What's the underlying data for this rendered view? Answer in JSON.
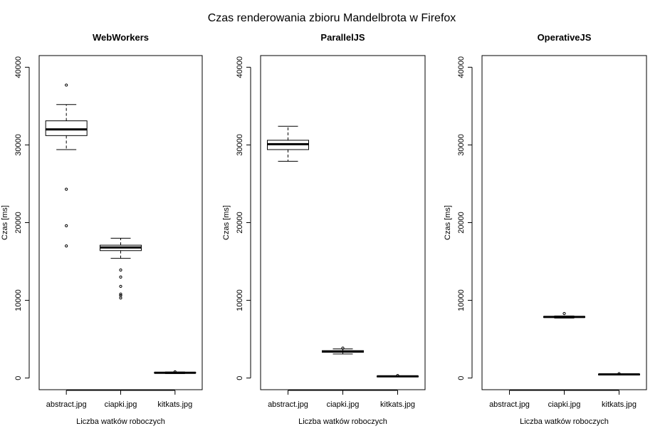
{
  "title": "Czas renderowania zbioru Mandelbrota w Firefox",
  "chart_data": [
    {
      "type": "boxplot",
      "title": "WebWorkers",
      "xlabel": "Liczba watków roboczych",
      "ylabel": "Czas [ms]",
      "ylim": [
        -1500,
        41500
      ],
      "yticks": [
        0,
        10000,
        20000,
        30000,
        40000
      ],
      "categories": [
        "abstract.jpg",
        "ciapki.jpg",
        "kitkats.jpg"
      ],
      "boxes": [
        {
          "category": "abstract.jpg",
          "whisker_low": 29400,
          "q1": 31200,
          "median": 32000,
          "q3": 33100,
          "whisker_high": 35200,
          "outliers": [
            37700,
            24300,
            19600,
            17000
          ]
        },
        {
          "category": "ciapki.jpg",
          "whisker_low": 15400,
          "q1": 16400,
          "median": 16800,
          "q3": 17100,
          "whisker_high": 18000,
          "outliers": [
            13900,
            13000,
            11800,
            10800,
            10600,
            10300
          ]
        },
        {
          "category": "kitkats.jpg",
          "whisker_low": 580,
          "q1": 630,
          "median": 680,
          "q3": 740,
          "whisker_high": 780,
          "outliers": [
            800
          ]
        }
      ]
    },
    {
      "type": "boxplot",
      "title": "ParallelJS",
      "xlabel": "Liczba watków roboczych",
      "ylabel": "Czas [ms]",
      "ylim": [
        -1500,
        41500
      ],
      "yticks": [
        0,
        10000,
        20000,
        30000,
        40000
      ],
      "categories": [
        "abstract.jpg",
        "ciapki.jpg",
        "kitkats.jpg"
      ],
      "boxes": [
        {
          "category": "abstract.jpg",
          "whisker_low": 27900,
          "q1": 29400,
          "median": 30100,
          "q3": 30600,
          "whisker_high": 32400,
          "outliers": []
        },
        {
          "category": "ciapki.jpg",
          "whisker_low": 3100,
          "q1": 3320,
          "median": 3420,
          "q3": 3520,
          "whisker_high": 3750,
          "outliers": [
            3850
          ]
        },
        {
          "category": "kitkats.jpg",
          "whisker_low": 150,
          "q1": 190,
          "median": 220,
          "q3": 250,
          "whisker_high": 290,
          "outliers": [
            320
          ]
        }
      ]
    },
    {
      "type": "boxplot",
      "title": "OperativeJS",
      "xlabel": "Liczba watków roboczych",
      "ylabel": "Czas [ms]",
      "ylim": [
        -1500,
        41500
      ],
      "yticks": [
        0,
        10000,
        20000,
        30000,
        40000
      ],
      "categories": [
        "abstract.jpg",
        "ciapki.jpg",
        "kitkats.jpg"
      ],
      "boxes": [
        {
          "category": "abstract.jpg",
          "whisker_low": null,
          "q1": null,
          "median": null,
          "q3": null,
          "whisker_high": null,
          "outliers": []
        },
        {
          "category": "ciapki.jpg",
          "whisker_low": 7720,
          "q1": 7800,
          "median": 7860,
          "q3": 7920,
          "whisker_high": 7990,
          "outliers": [
            8300
          ]
        },
        {
          "category": "kitkats.jpg",
          "whisker_low": 400,
          "q1": 440,
          "median": 470,
          "q3": 500,
          "whisker_high": 530,
          "outliers": [
            560
          ]
        }
      ]
    }
  ]
}
